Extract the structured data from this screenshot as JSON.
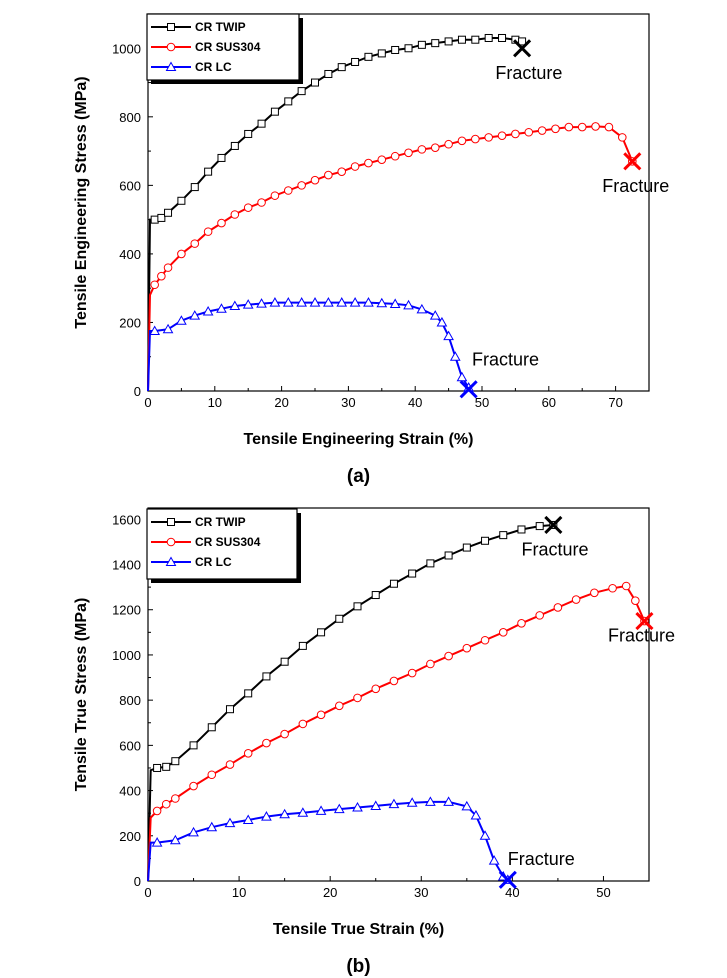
{
  "colors": {
    "twip": "#000000",
    "sus304": "#ff0000",
    "lc": "#0000ff"
  },
  "chart_data": [
    {
      "type": "line",
      "panel_label": "(a)",
      "xlabel": "Tensile Engineering Strain (%)",
      "ylabel": "Tensile Engineering Stress (MPa)",
      "xlim": [
        0,
        75
      ],
      "ylim": [
        0,
        1100
      ],
      "xticks": [
        0,
        10,
        20,
        30,
        40,
        50,
        60,
        70
      ],
      "yticks": [
        0,
        200,
        400,
        600,
        800,
        1000
      ],
      "legend_position": "top-left",
      "series": [
        {
          "name": "CR TWIP",
          "color": "#000000",
          "marker": "square",
          "x": [
            0,
            0.3,
            1,
            2,
            3,
            5,
            7,
            9,
            11,
            13,
            15,
            17,
            19,
            21,
            23,
            25,
            27,
            29,
            31,
            33,
            35,
            37,
            39,
            41,
            43,
            45,
            47,
            49,
            51,
            53,
            55,
            56
          ],
          "y": [
            0,
            500,
            500,
            505,
            520,
            555,
            595,
            640,
            680,
            715,
            750,
            780,
            815,
            845,
            875,
            900,
            925,
            945,
            960,
            975,
            985,
            995,
            1000,
            1010,
            1015,
            1020,
            1025,
            1025,
            1030,
            1030,
            1025,
            1020
          ]
        },
        {
          "name": "CR SUS304",
          "color": "#ff0000",
          "marker": "circle",
          "x": [
            0,
            0.3,
            1,
            2,
            3,
            5,
            7,
            9,
            11,
            13,
            15,
            17,
            19,
            21,
            23,
            25,
            27,
            29,
            31,
            33,
            35,
            37,
            39,
            41,
            43,
            45,
            47,
            49,
            51,
            53,
            55,
            57,
            59,
            61,
            63,
            65,
            67,
            69,
            71,
            72.5
          ],
          "y": [
            0,
            280,
            310,
            335,
            360,
            400,
            430,
            465,
            490,
            515,
            535,
            550,
            570,
            585,
            600,
            615,
            630,
            640,
            655,
            665,
            675,
            685,
            695,
            705,
            710,
            720,
            730,
            735,
            740,
            745,
            750,
            755,
            760,
            765,
            770,
            770,
            772,
            770,
            740,
            670
          ]
        },
        {
          "name": "CR LC",
          "color": "#0000ff",
          "marker": "triangle",
          "x": [
            0,
            0.3,
            1,
            3,
            5,
            7,
            9,
            11,
            13,
            15,
            17,
            19,
            21,
            23,
            25,
            27,
            29,
            31,
            33,
            35,
            37,
            39,
            41,
            43,
            44,
            45,
            46,
            47,
            48
          ],
          "y": [
            0,
            175,
            175,
            180,
            205,
            220,
            232,
            240,
            248,
            252,
            255,
            258,
            258,
            258,
            258,
            258,
            258,
            258,
            258,
            256,
            254,
            250,
            238,
            220,
            200,
            160,
            100,
            40,
            10
          ]
        }
      ],
      "annotations": [
        {
          "text": "Fracture",
          "x": 56,
          "y": 1000,
          "label_x": 52,
          "label_y": 910,
          "color": "#000000"
        },
        {
          "text": "Fracture",
          "x": 72.5,
          "y": 670,
          "label_x": 68,
          "label_y": 580,
          "color": "#ff0000"
        },
        {
          "text": "Fracture",
          "x": 48,
          "y": 5,
          "label_x": 48.5,
          "label_y": 75,
          "color": "#0000ff"
        }
      ]
    },
    {
      "type": "line",
      "panel_label": "(b)",
      "xlabel": "Tensile True Strain (%)",
      "ylabel": "Tensile True Stress (MPa)",
      "xlim": [
        0,
        55
      ],
      "ylim": [
        0,
        1650
      ],
      "xticks": [
        0,
        10,
        20,
        30,
        40,
        50
      ],
      "yticks": [
        0,
        200,
        400,
        600,
        800,
        1000,
        1200,
        1400,
        1600
      ],
      "legend_position": "top-left",
      "series": [
        {
          "name": "CR TWIP",
          "color": "#000000",
          "marker": "square",
          "x": [
            0,
            0.3,
            1,
            2,
            3,
            5,
            7,
            9,
            11,
            13,
            15,
            17,
            19,
            21,
            23,
            25,
            27,
            29,
            31,
            33,
            35,
            37,
            39,
            41,
            43,
            44.5
          ],
          "y": [
            0,
            490,
            500,
            505,
            530,
            600,
            680,
            760,
            830,
            905,
            970,
            1040,
            1100,
            1160,
            1215,
            1265,
            1315,
            1360,
            1405,
            1440,
            1475,
            1505,
            1530,
            1555,
            1570,
            1575
          ]
        },
        {
          "name": "CR SUS304",
          "color": "#ff0000",
          "marker": "circle",
          "x": [
            0,
            0.3,
            1,
            2,
            3,
            5,
            7,
            9,
            11,
            13,
            15,
            17,
            19,
            21,
            23,
            25,
            27,
            29,
            31,
            33,
            35,
            37,
            39,
            41,
            43,
            45,
            47,
            49,
            51,
            52.5,
            53.5,
            54.5
          ],
          "y": [
            0,
            280,
            310,
            340,
            365,
            420,
            470,
            515,
            565,
            610,
            650,
            695,
            735,
            775,
            810,
            850,
            885,
            920,
            960,
            995,
            1030,
            1065,
            1100,
            1140,
            1175,
            1210,
            1245,
            1275,
            1295,
            1305,
            1240,
            1150
          ]
        },
        {
          "name": "CR LC",
          "color": "#0000ff",
          "marker": "triangle",
          "x": [
            0,
            0.3,
            1,
            3,
            5,
            7,
            9,
            11,
            13,
            15,
            17,
            19,
            21,
            23,
            25,
            27,
            29,
            31,
            33,
            35,
            36,
            37,
            38,
            39,
            39.5
          ],
          "y": [
            0,
            170,
            170,
            180,
            215,
            238,
            256,
            270,
            285,
            295,
            302,
            310,
            318,
            325,
            332,
            340,
            346,
            350,
            350,
            330,
            290,
            200,
            90,
            20,
            5
          ]
        }
      ],
      "annotations": [
        {
          "text": "Fracture",
          "x": 44.5,
          "y": 1575,
          "label_x": 41,
          "label_y": 1440,
          "color": "#000000"
        },
        {
          "text": "Fracture",
          "x": 54.5,
          "y": 1150,
          "label_x": 50.5,
          "label_y": 1060,
          "color": "#ff0000"
        },
        {
          "text": "Fracture",
          "x": 39.5,
          "y": 5,
          "label_x": 39.5,
          "label_y": 70,
          "color": "#0000ff"
        }
      ]
    }
  ]
}
